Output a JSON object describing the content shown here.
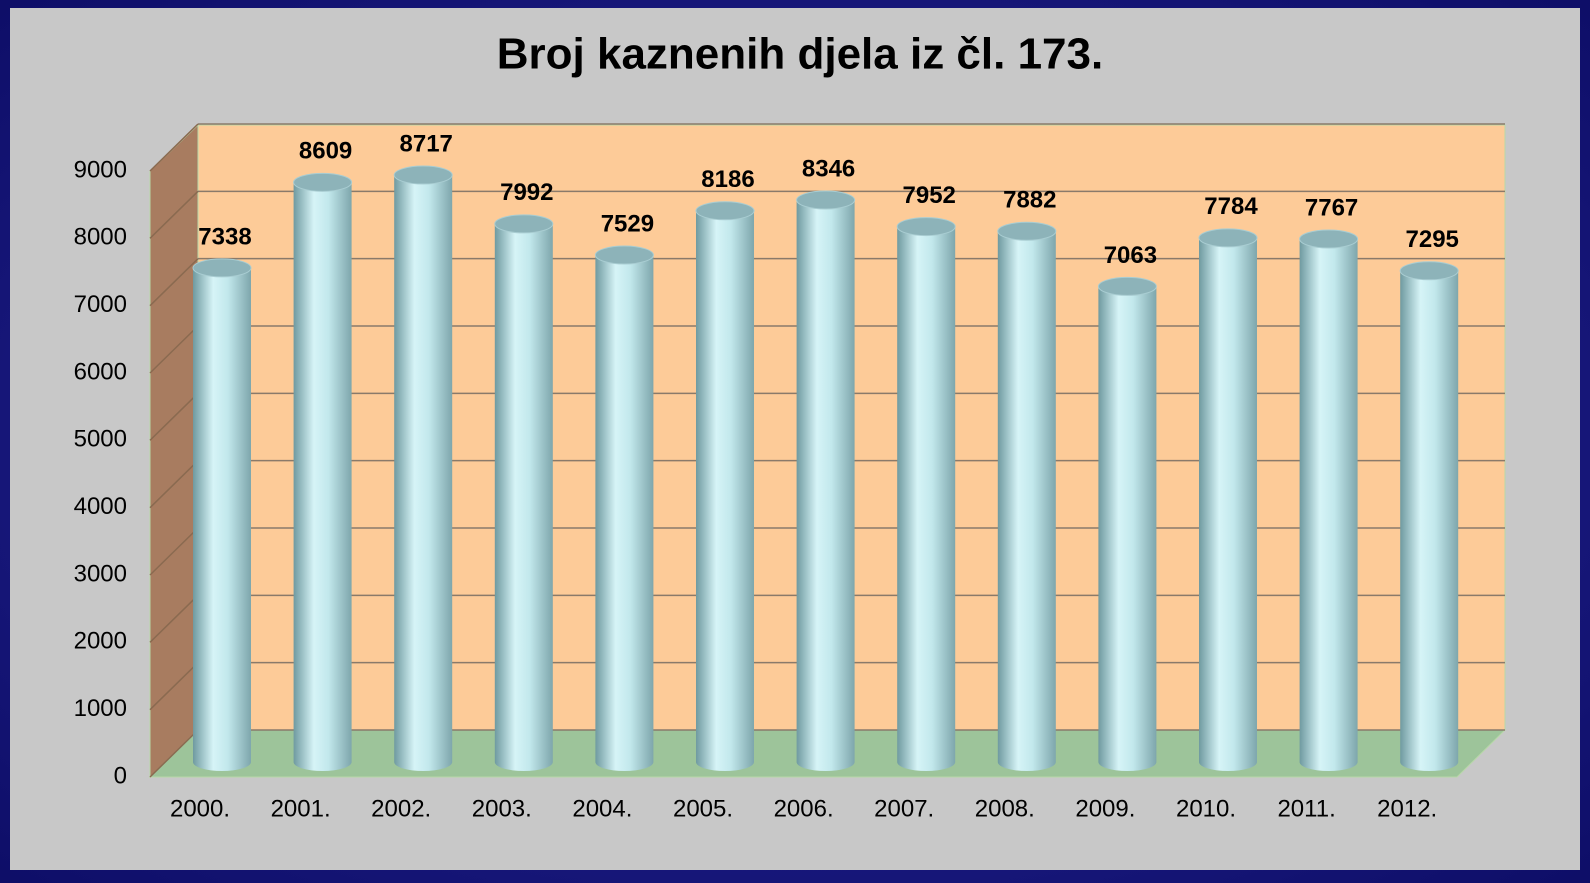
{
  "chart_data": {
    "type": "bar",
    "title": "Broj kaznenih djela iz čl. 173.",
    "categories": [
      "2000.",
      "2001.",
      "2002.",
      "2003.",
      "2004.",
      "2005.",
      "2006.",
      "2007.",
      "2008.",
      "2009.",
      "2010.",
      "2011.",
      "2012."
    ],
    "values": [
      7338,
      8609,
      8717,
      7992,
      7529,
      8186,
      8346,
      7952,
      7882,
      7063,
      7784,
      7767,
      7295
    ],
    "color": "#bfe6ea",
    "ylim": [
      0,
      9000
    ],
    "yticks": [
      0,
      1000,
      2000,
      3000,
      4000,
      5000,
      6000,
      7000,
      8000,
      9000
    ],
    "grid": true
  }
}
